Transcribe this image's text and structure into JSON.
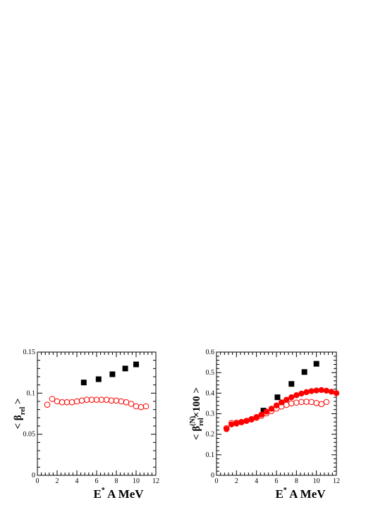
{
  "chart_data": [
    {
      "type": "scatter",
      "xlabel": {
        "main": "E",
        "sup": "*",
        "rest": " A MeV"
      },
      "ylabel": {
        "open": "< β",
        "sub": "rel",
        "close": " >"
      },
      "xlim": [
        0,
        12
      ],
      "ylim": [
        0,
        0.15
      ],
      "xticks": [
        "0",
        "2",
        "4",
        "6",
        "8",
        "10",
        "12"
      ],
      "yticks": [
        "0",
        "0.05",
        "0.1",
        "0.15"
      ],
      "grid": false,
      "series": [
        {
          "marker": "filled-square",
          "color": "#000000",
          "x": [
            4.7,
            6.2,
            7.6,
            8.9,
            10.0
          ],
          "y": [
            0.113,
            0.117,
            0.123,
            0.13,
            0.135
          ]
        },
        {
          "marker": "open-circle",
          "color": "#ff0000",
          "x": [
            1.0,
            1.5,
            2.0,
            2.5,
            3.0,
            3.5,
            4.0,
            4.5,
            5.0,
            5.5,
            6.0,
            6.5,
            7.0,
            7.5,
            8.0,
            8.5,
            9.0,
            9.5,
            10.0,
            10.5,
            11.0
          ],
          "y": [
            0.086,
            0.093,
            0.09,
            0.089,
            0.089,
            0.089,
            0.09,
            0.091,
            0.092,
            0.092,
            0.092,
            0.092,
            0.092,
            0.091,
            0.091,
            0.09,
            0.089,
            0.087,
            0.084,
            0.083,
            0.084
          ]
        }
      ]
    },
    {
      "type": "scatter",
      "xlabel": {
        "main": "E",
        "sup": "*",
        "rest": " A MeV"
      },
      "ylabel": {
        "open": "< β",
        "sup": "(N)",
        "sub": "rel",
        "close": "×100 >"
      },
      "xlim": [
        0,
        12
      ],
      "ylim": [
        0,
        0.6
      ],
      "xticks": [
        "0",
        "2",
        "4",
        "6",
        "8",
        "10",
        "12"
      ],
      "yticks": [
        "0",
        "0.1",
        "0.2",
        "0.3",
        "0.4",
        "0.5",
        "0.6"
      ],
      "grid": false,
      "series": [
        {
          "marker": "filled-square",
          "color": "#000000",
          "x": [
            4.7,
            6.1,
            7.5,
            8.8,
            10.0
          ],
          "y": [
            0.315,
            0.38,
            0.445,
            0.503,
            0.543
          ]
        },
        {
          "marker": "filled-circle",
          "color": "#ff0000",
          "x": [
            1.0,
            1.5,
            2.0,
            2.5,
            3.0,
            3.5,
            4.0,
            4.5,
            5.0,
            5.5,
            6.0,
            6.5,
            7.0,
            7.5,
            8.0,
            8.5,
            9.0,
            9.5,
            10.0,
            10.5,
            11.0,
            11.5,
            12.0
          ],
          "y": [
            0.225,
            0.248,
            0.252,
            0.258,
            0.265,
            0.274,
            0.284,
            0.296,
            0.31,
            0.324,
            0.34,
            0.355,
            0.368,
            0.38,
            0.39,
            0.398,
            0.405,
            0.41,
            0.413,
            0.415,
            0.412,
            0.407,
            0.4
          ]
        },
        {
          "marker": "open-circle",
          "color": "#ff0000",
          "x": [
            1.0,
            1.5,
            2.0,
            2.5,
            3.0,
            3.5,
            4.0,
            4.5,
            5.0,
            5.5,
            6.0,
            6.5,
            7.0,
            7.5,
            8.0,
            8.5,
            9.0,
            9.5,
            10.0,
            10.5,
            11.0
          ],
          "y": [
            0.23,
            0.255,
            0.256,
            0.26,
            0.265,
            0.272,
            0.28,
            0.29,
            0.302,
            0.313,
            0.325,
            0.335,
            0.343,
            0.35,
            0.354,
            0.357,
            0.358,
            0.357,
            0.352,
            0.347,
            0.357
          ]
        }
      ]
    }
  ]
}
